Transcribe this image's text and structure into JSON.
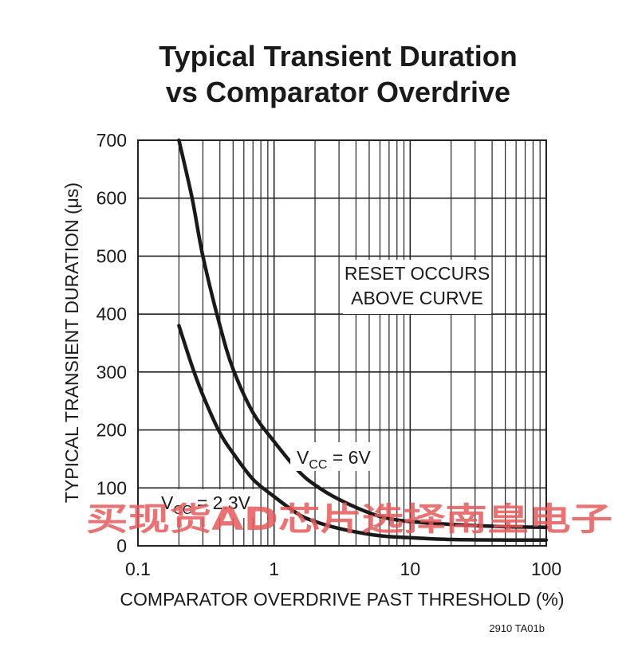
{
  "chart_data": {
    "type": "line",
    "title_line1": "Typical Transient Duration",
    "title_line2": "vs Comparator Overdrive",
    "xlabel": "COMPARATOR OVERDRIVE PAST THRESHOLD (%)",
    "ylabel": "TYPICAL TRANSIENT DURATION (μs)",
    "xscale": "log",
    "xlim": [
      0.1,
      100
    ],
    "ylim": [
      0,
      700
    ],
    "grid": true,
    "x_ticks": [
      "0.1",
      "1",
      "10",
      "100"
    ],
    "y_ticks": [
      "0",
      "100",
      "200",
      "300",
      "400",
      "500",
      "600",
      "700"
    ],
    "series": [
      {
        "name": "VCC = 6V",
        "label_main": "V",
        "label_sub": "CC",
        "label_rest": " = 6V",
        "x": [
          0.2,
          0.25,
          0.3,
          0.4,
          0.5,
          0.7,
          1,
          1.5,
          2,
          3,
          5,
          7,
          10,
          20,
          50,
          100
        ],
        "y": [
          700,
          600,
          500,
          380,
          305,
          230,
          180,
          130,
          105,
          80,
          57,
          47,
          42,
          37,
          33,
          32
        ]
      },
      {
        "name": "VCC = 2.3V",
        "label_main": "V",
        "label_sub": "CC",
        "label_rest": " = 2.3V",
        "x": [
          0.2,
          0.25,
          0.3,
          0.4,
          0.5,
          0.7,
          1,
          1.5,
          2,
          3,
          5,
          7,
          10,
          20,
          50,
          100
        ],
        "y": [
          380,
          310,
          260,
          195,
          160,
          115,
          85,
          55,
          42,
          30,
          20,
          16,
          14,
          11,
          10,
          10
        ]
      }
    ],
    "annotation_line1": "RESET OCCURS",
    "annotation_line2": "ABOVE CURVE",
    "figure_id": "2910 TA01b"
  },
  "watermark": "买现货AD芯片选择南皇电子",
  "colors": {
    "curve": "#1a1a1a",
    "grid": "#222222",
    "watermark": "#e85a5a"
  }
}
